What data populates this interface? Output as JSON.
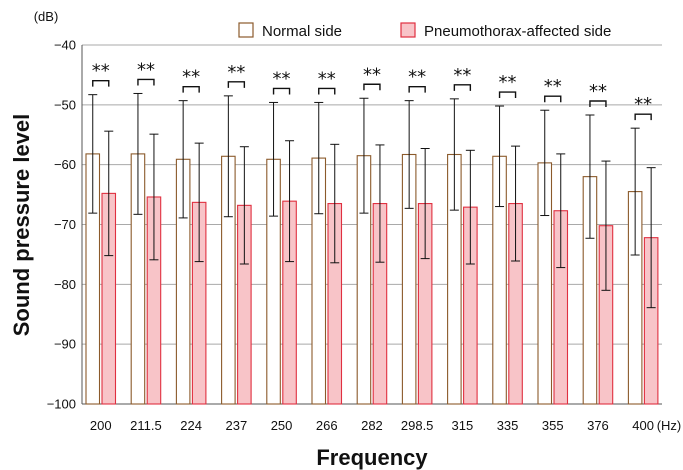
{
  "chart_data": {
    "type": "bar",
    "categories": [
      "200",
      "211.5",
      "224",
      "237",
      "250",
      "266",
      "282",
      "298.5",
      "315",
      "335",
      "355",
      "376",
      "400"
    ],
    "x_unit": "(Hz)",
    "y_unit": "(dB)",
    "xlabel": "Frequency",
    "ylabel": "Sound pressure level",
    "ylim": [
      -100,
      -40
    ],
    "yticks": [
      -40,
      -50,
      -60,
      -70,
      -80,
      -90,
      -100
    ],
    "grid": true,
    "legend_position": "top-right",
    "series": [
      {
        "name": "Normal side",
        "color": "#8B5A2B",
        "fill": "#ffffff",
        "values": [
          -58.2,
          -58.2,
          -59.1,
          -58.6,
          -59.1,
          -58.9,
          -58.5,
          -58.3,
          -58.3,
          -58.6,
          -59.7,
          -62.0,
          -64.5
        ],
        "errors": [
          9.9,
          10.1,
          9.8,
          10.1,
          9.5,
          9.3,
          9.6,
          9.0,
          9.3,
          8.4,
          8.8,
          10.3,
          10.6
        ]
      },
      {
        "name": "Pneumothorax-affected side",
        "color": "#E03040",
        "fill": "#F8C4C8",
        "values": [
          -64.8,
          -65.4,
          -66.3,
          -66.8,
          -66.1,
          -66.5,
          -66.5,
          -66.5,
          -67.1,
          -66.5,
          -67.7,
          -70.2,
          -72.2
        ],
        "errors": [
          10.4,
          10.5,
          9.9,
          9.8,
          10.1,
          9.9,
          9.8,
          9.2,
          9.5,
          9.6,
          9.5,
          10.8,
          11.7
        ]
      }
    ],
    "annotations": {
      "significance": [
        "**",
        "**",
        "**",
        "**",
        "**",
        "**",
        "**",
        "**",
        "**",
        "**",
        "**",
        "**",
        "**"
      ]
    }
  }
}
